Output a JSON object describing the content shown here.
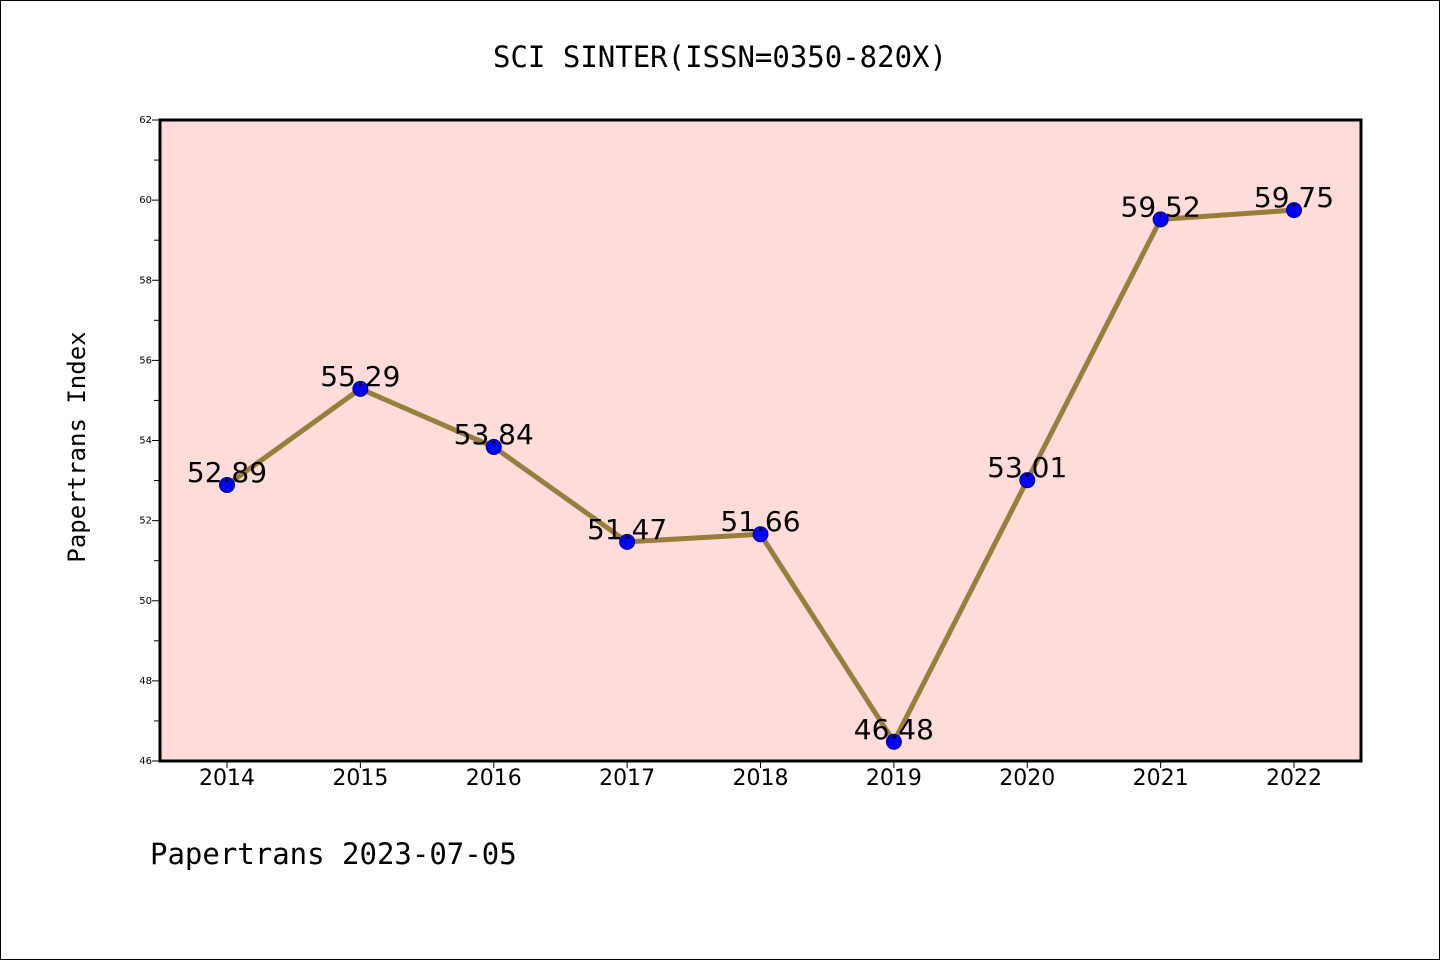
{
  "chart_data": {
    "type": "line",
    "title": "SCI SINTER(ISSN=0350-820X)",
    "xlabel": "",
    "ylabel": "Papertrans Index",
    "categories": [
      "2014",
      "2015",
      "2016",
      "2017",
      "2018",
      "2019",
      "2020",
      "2021",
      "2022"
    ],
    "series": [
      {
        "values": [
          52.89,
          55.29,
          53.84,
          51.47,
          51.66,
          46.48,
          53.01,
          59.52,
          59.75
        ],
        "data_labels": [
          "52.89",
          "55.29",
          "53.84",
          "51.47",
          "51.66",
          "46.48",
          "53.01",
          "59.52",
          "59.75"
        ],
        "line_color": "#9a7d3a",
        "marker_color": "#0000ff"
      }
    ],
    "ylim": [
      46,
      62
    ],
    "yticks": [
      "46",
      "48",
      "50",
      "52",
      "54",
      "56",
      "58",
      "60",
      "62"
    ],
    "grid": false,
    "plot_background": "#fddcd9"
  },
  "footer": {
    "text": "Papertrans 2023-07-05"
  }
}
